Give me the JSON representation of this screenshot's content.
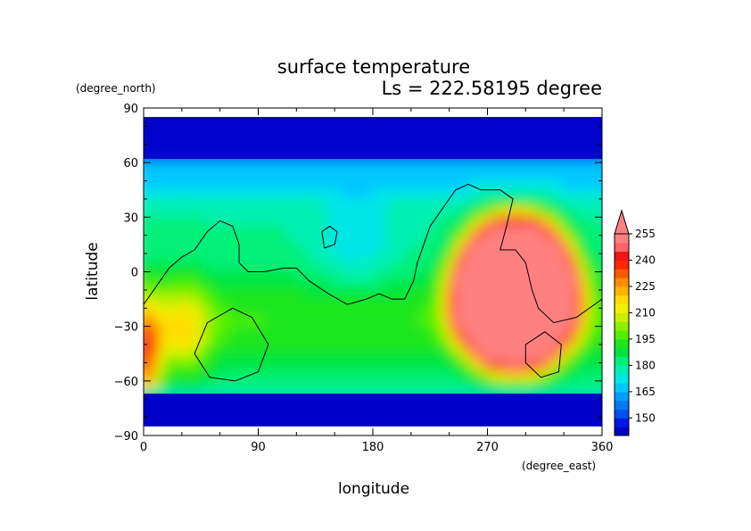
{
  "chart_data": {
    "type": "heatmap",
    "title": "surface temperature",
    "subtitle": "Ls = 222.58195 degree",
    "xlabel": "longitude",
    "ylabel": "latitude",
    "x_units": "(degree_east)",
    "y_units": "(degree_north)",
    "xlim": [
      0,
      360
    ],
    "ylim": [
      -90,
      90
    ],
    "x_ticks": [
      0,
      90,
      180,
      270,
      360
    ],
    "y_ticks": [
      90,
      60,
      30,
      0,
      -30,
      -60,
      -90
    ],
    "x_tick_labels": [
      "0",
      "90",
      "180",
      "270",
      "360"
    ],
    "y_tick_labels": [
      "90",
      "60",
      "30",
      "0",
      "−30",
      "−60",
      "−90"
    ],
    "colorbar": {
      "levels": [
        145,
        150,
        155,
        160,
        165,
        170,
        175,
        180,
        185,
        190,
        195,
        200,
        205,
        210,
        215,
        220,
        225,
        230,
        235,
        240,
        245,
        250,
        255
      ],
      "tick_labels": [
        "150",
        "165",
        "180",
        "195",
        "210",
        "225",
        "240",
        "255"
      ],
      "tick_values": [
        150,
        165,
        180,
        195,
        210,
        225,
        240,
        255
      ],
      "colors": [
        "#0000c8",
        "#0018e6",
        "#0050f0",
        "#0078f8",
        "#00a0ff",
        "#00c8ff",
        "#00e6e6",
        "#00f0b4",
        "#00f078",
        "#00e640",
        "#1ee61e",
        "#50f000",
        "#8cf000",
        "#c8f000",
        "#f0f000",
        "#ffdc00",
        "#ffb400",
        "#ff8c00",
        "#ff5a00",
        "#ff2800",
        "#f01414",
        "#ff6464",
        "#ff8080"
      ],
      "extend": "max"
    },
    "grid": false
  }
}
